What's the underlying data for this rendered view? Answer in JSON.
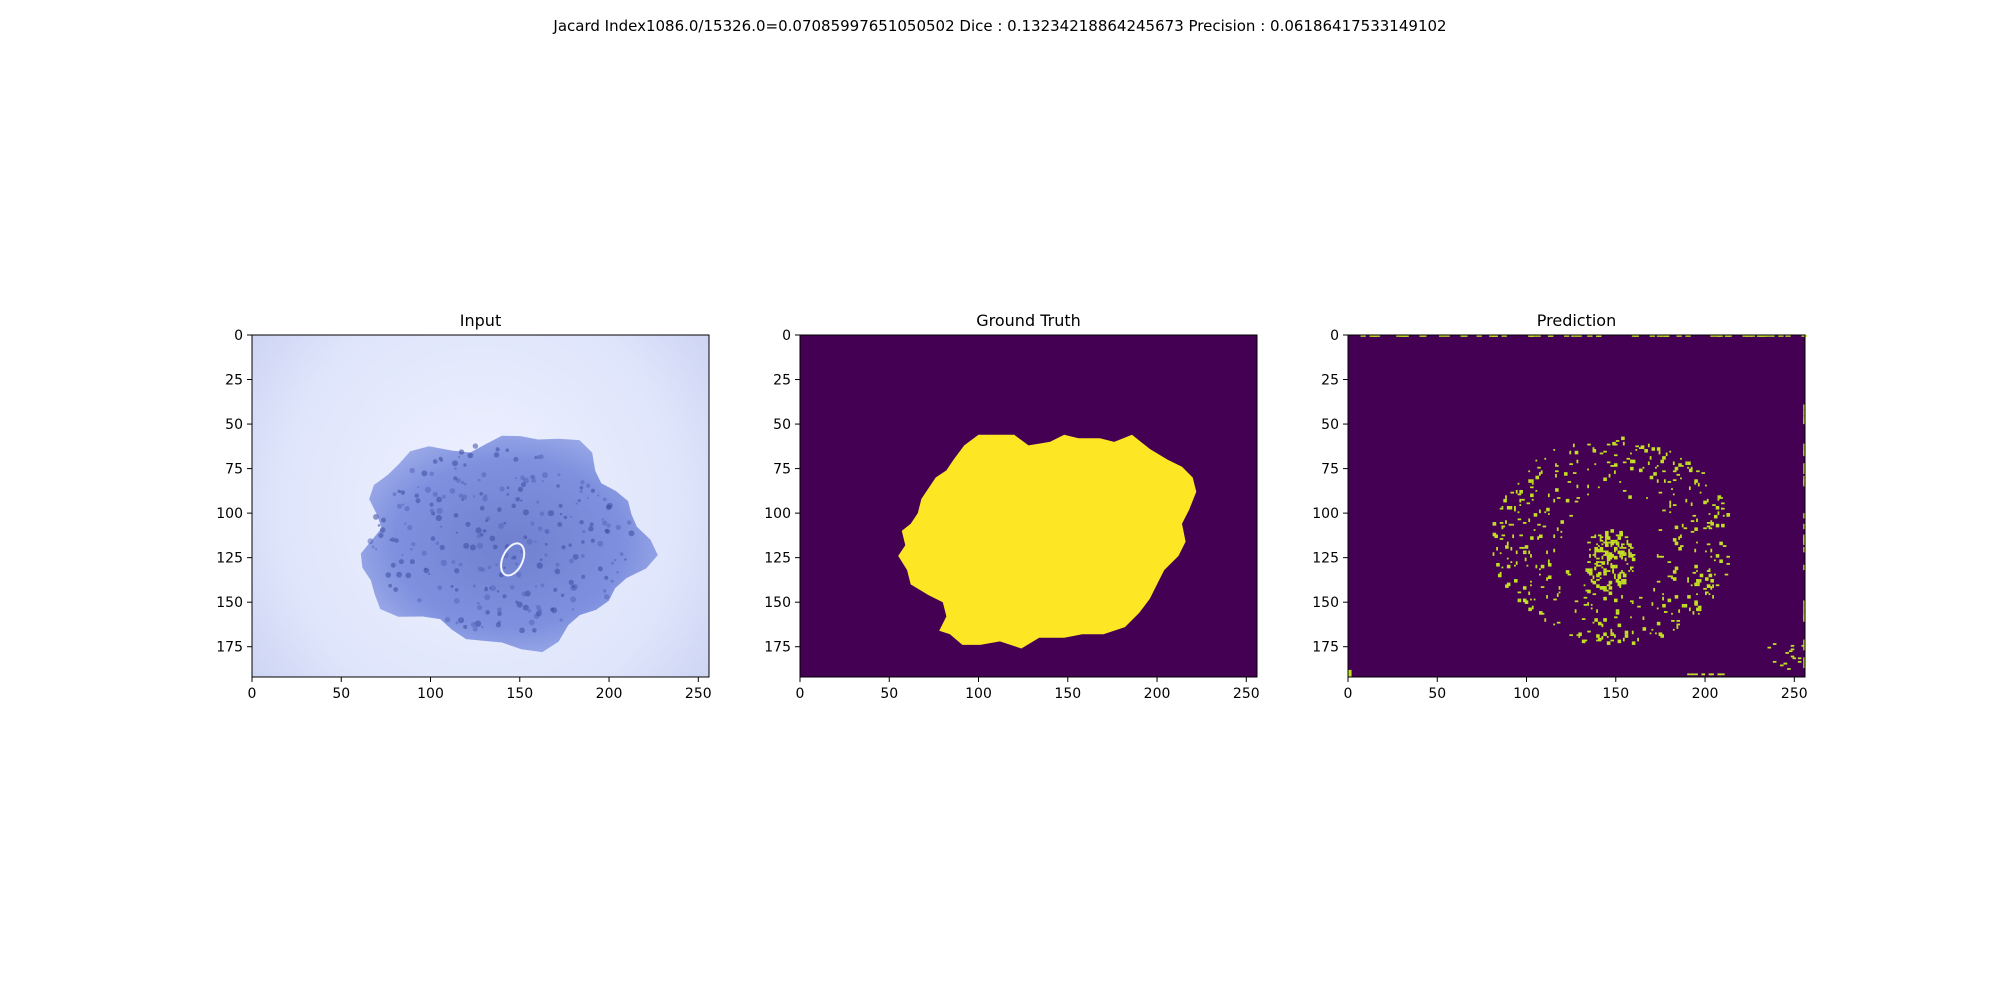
{
  "figure": {
    "suptitle": "Jacard Index1086.0/15326.0=0.07085997651050502 Dice : 0.13234218864245673 Precision : 0.06186417533149102"
  },
  "colors": {
    "mask_background": "#440154",
    "mask_foreground": "#fde725",
    "prediction_foreground": "#c2df23",
    "lesion_blue": "#6f82d8",
    "skin_light": "#e4e9fb",
    "vignette_dark": "#232733"
  },
  "chart_data": [
    {
      "type": "heatmap",
      "title": "Input",
      "xlim": [
        0,
        256
      ],
      "ylim": [
        192,
        0
      ],
      "xticks": [
        "0",
        "50",
        "100",
        "150",
        "200",
        "250"
      ],
      "yticks": [
        "0",
        "25",
        "50",
        "75",
        "100",
        "125",
        "150",
        "175"
      ],
      "content": "image"
    },
    {
      "type": "heatmap",
      "title": "Ground Truth",
      "xlim": [
        0,
        256
      ],
      "ylim": [
        192,
        0
      ],
      "xticks": [
        "0",
        "50",
        "100",
        "150",
        "200",
        "250"
      ],
      "yticks": [
        "0",
        "25",
        "50",
        "75",
        "100",
        "125",
        "150",
        "175"
      ],
      "content": "mask",
      "mask_outline": [
        [
          57,
          110
        ],
        [
          59,
          118
        ],
        [
          55,
          124
        ],
        [
          60,
          132
        ],
        [
          62,
          140
        ],
        [
          72,
          146
        ],
        [
          80,
          150
        ],
        [
          82,
          158
        ],
        [
          78,
          166
        ],
        [
          84,
          168
        ],
        [
          91,
          174
        ],
        [
          101,
          174
        ],
        [
          112,
          172
        ],
        [
          124,
          176
        ],
        [
          134,
          170
        ],
        [
          148,
          170
        ],
        [
          158,
          168
        ],
        [
          170,
          168
        ],
        [
          182,
          164
        ],
        [
          190,
          156
        ],
        [
          196,
          148
        ],
        [
          200,
          140
        ],
        [
          204,
          132
        ],
        [
          212,
          124
        ],
        [
          216,
          116
        ],
        [
          214,
          106
        ],
        [
          218,
          98
        ],
        [
          222,
          88
        ],
        [
          220,
          80
        ],
        [
          214,
          74
        ],
        [
          206,
          70
        ],
        [
          196,
          64
        ],
        [
          186,
          56
        ],
        [
          176,
          60
        ],
        [
          168,
          58
        ],
        [
          156,
          58
        ],
        [
          148,
          56
        ],
        [
          140,
          60
        ],
        [
          128,
          62
        ],
        [
          120,
          56
        ],
        [
          110,
          56
        ],
        [
          100,
          56
        ],
        [
          92,
          62
        ],
        [
          86,
          70
        ],
        [
          82,
          76
        ],
        [
          76,
          80
        ],
        [
          72,
          86
        ],
        [
          68,
          92
        ],
        [
          66,
          100
        ],
        [
          62,
          106
        ]
      ]
    },
    {
      "type": "heatmap",
      "title": "Prediction",
      "xlim": [
        0,
        256
      ],
      "ylim": [
        192,
        0
      ],
      "xticks": [
        "0",
        "50",
        "100",
        "150",
        "200",
        "250"
      ],
      "yticks": [
        "0",
        "25",
        "50",
        "75",
        "100",
        "125",
        "150",
        "175"
      ],
      "content": "sparse_mask"
    }
  ]
}
